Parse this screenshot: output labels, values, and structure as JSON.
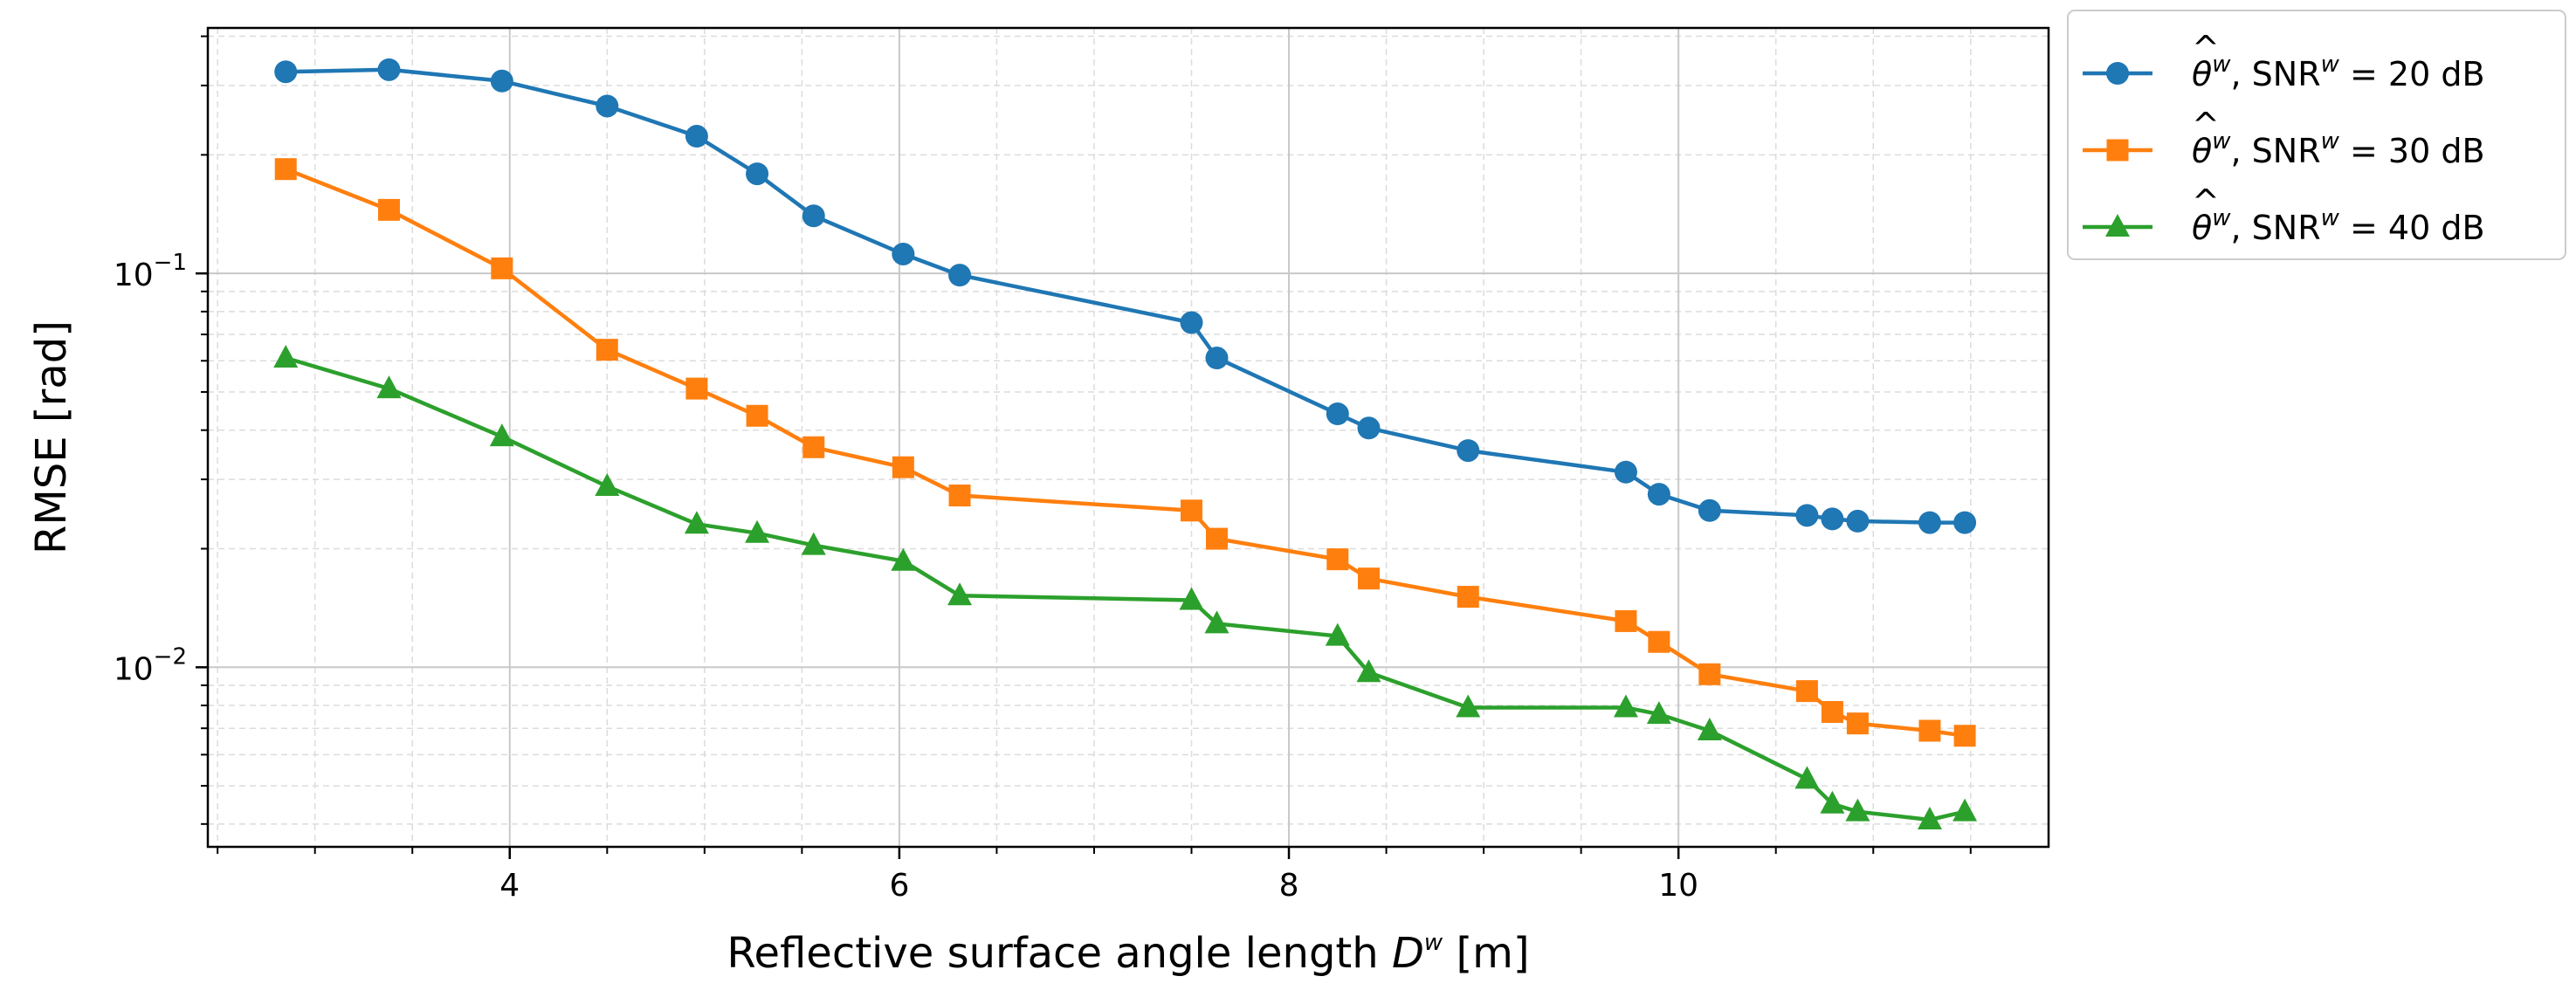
{
  "chart_data": {
    "type": "line",
    "title": "",
    "xlabel": "Reflective surface angle length",
    "xlabel_symbol": "D",
    "xlabel_symbol_sup": "w",
    "xlabel_unit": "[m]",
    "ylabel": "RMSE [rad]",
    "xscale": "linear",
    "yscale": "log",
    "xlim": [
      2.45,
      11.9
    ],
    "ylim": [
      0.0035,
      0.42
    ],
    "xticks": [
      4,
      6,
      8,
      10
    ],
    "xtick_labels": [
      "4",
      "6",
      "8",
      "10"
    ],
    "yticks": [
      0.01,
      0.1
    ],
    "ytick_labels": [
      {
        "base": "10",
        "exp": "−2"
      },
      {
        "base": "10",
        "exp": "−1"
      }
    ],
    "grid": true,
    "legend_position": "outside top-right",
    "x": [
      2.85,
      3.38,
      3.96,
      4.5,
      4.96,
      5.27,
      5.56,
      6.02,
      6.31,
      7.5,
      7.63,
      8.25,
      8.41,
      8.92,
      9.73,
      9.9,
      10.16,
      10.66,
      10.79,
      10.92,
      11.29,
      11.47
    ],
    "series": [
      {
        "name": "SNR^w = 20 dB",
        "legend": {
          "symbol": "θ",
          "sup": "w",
          "mid": ", SNR",
          "sup2": "w",
          "rest": " = 20 dB"
        },
        "color": "#1f77b4",
        "marker": "circle",
        "values": [
          0.325,
          0.329,
          0.308,
          0.266,
          0.223,
          0.179,
          0.14,
          0.112,
          0.099,
          0.075,
          0.061,
          0.044,
          0.0405,
          0.0355,
          0.0313,
          0.0275,
          0.025,
          0.0243,
          0.0238,
          0.0235,
          0.0233,
          0.0233
        ]
      },
      {
        "name": "SNR^w = 30 dB",
        "legend": {
          "symbol": "θ",
          "sup": "w",
          "mid": ", SNR",
          "sup2": "w",
          "rest": " = 30 dB"
        },
        "color": "#ff7f0e",
        "marker": "square",
        "values": [
          0.184,
          0.145,
          0.103,
          0.064,
          0.051,
          0.0435,
          0.0362,
          0.0322,
          0.0273,
          0.025,
          0.0212,
          0.0188,
          0.0168,
          0.0151,
          0.0131,
          0.0116,
          0.0096,
          0.0087,
          0.0077,
          0.0072,
          0.0069,
          0.0067
        ]
      },
      {
        "name": "SNR^w = 40 dB",
        "legend": {
          "symbol": "θ",
          "sup": "w",
          "mid": ", SNR",
          "sup2": "w",
          "rest": " = 40 dB"
        },
        "color": "#2ca02c",
        "marker": "triangle",
        "values": [
          0.061,
          0.051,
          0.0385,
          0.0288,
          0.0231,
          0.0219,
          0.0204,
          0.0186,
          0.0152,
          0.0148,
          0.0129,
          0.012,
          0.0097,
          0.0079,
          0.0079,
          0.0076,
          0.0069,
          0.0052,
          0.0045,
          0.0043,
          0.0041,
          0.0043
        ]
      }
    ]
  }
}
